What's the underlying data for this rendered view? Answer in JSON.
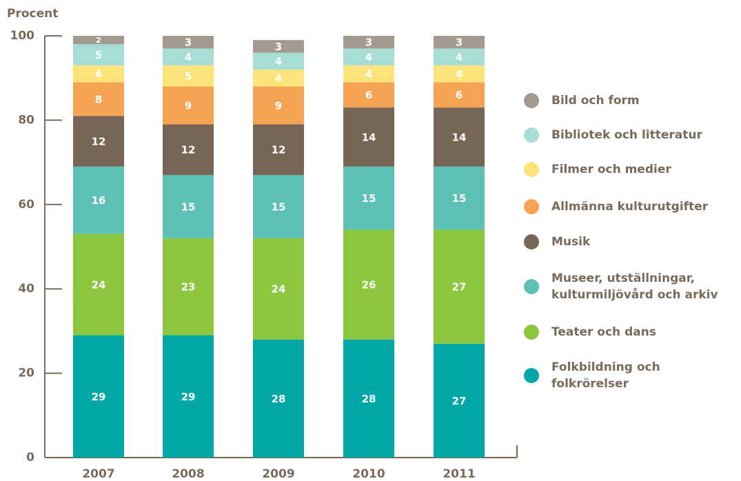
{
  "chart_data": {
    "type": "stacked_bar",
    "y_label": "Procent",
    "categories": [
      "2007",
      "2008",
      "2009",
      "2010",
      "2011"
    ],
    "ylim": [
      0,
      100
    ],
    "yticks": [
      0,
      20,
      40,
      60,
      80,
      100
    ],
    "series": [
      {
        "name": "Folkbildning och folkrörelser",
        "color": "#00a9a8",
        "values": [
          29,
          29,
          28,
          28,
          27
        ]
      },
      {
        "name": "Teater och dans",
        "color": "#8dc63f",
        "values": [
          24,
          23,
          24,
          26,
          27
        ]
      },
      {
        "name": "Museer, utställningar, kulturmiljövård och arkiv",
        "color": "#5dc2b5",
        "values": [
          16,
          15,
          15,
          15,
          15
        ]
      },
      {
        "name": "Musik",
        "color": "#776555",
        "values": [
          12,
          12,
          12,
          14,
          14
        ]
      },
      {
        "name": "Allmänna kulturutgifter",
        "color": "#f7a356",
        "values": [
          8,
          9,
          9,
          6,
          6
        ]
      },
      {
        "name": "Filmer och medier",
        "color": "#fde47a",
        "values": [
          4,
          5,
          4,
          4,
          4
        ]
      },
      {
        "name": "Bibliotek och litteratur",
        "color": "#a8ddd6",
        "values": [
          5,
          4,
          4,
          4,
          4
        ]
      },
      {
        "name": "Bild och form",
        "color": "#a39a90",
        "values": [
          2,
          3,
          3,
          3,
          3
        ]
      }
    ]
  }
}
